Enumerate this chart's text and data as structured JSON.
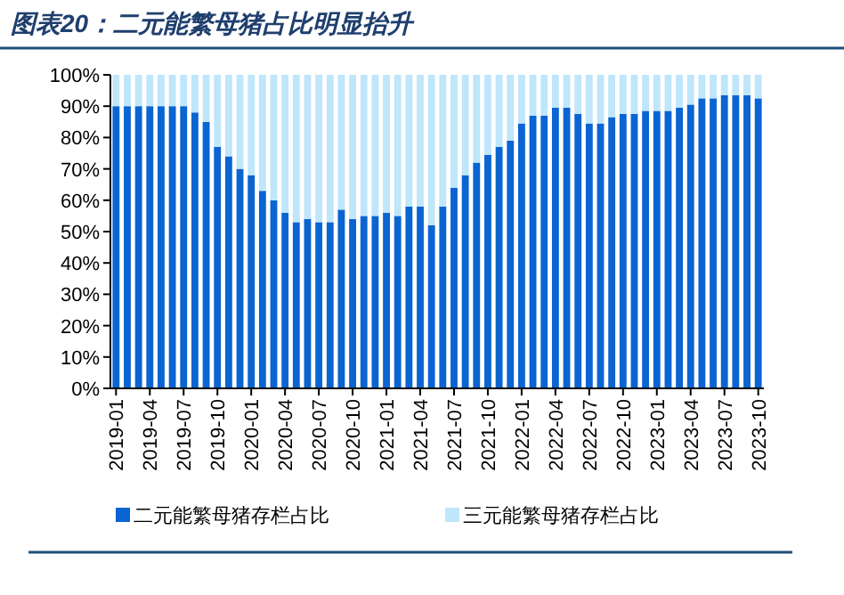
{
  "chart_data": {
    "type": "bar",
    "stacked": true,
    "title": "图表20：二元能繁母猪占比明显抬升",
    "categories": [
      "2019-01",
      null,
      null,
      "2019-04",
      null,
      null,
      "2019-07",
      null,
      null,
      "2019-10",
      null,
      null,
      "2020-01",
      null,
      null,
      "2020-04",
      null,
      null,
      "2020-07",
      null,
      null,
      "2020-10",
      null,
      null,
      "2021-01",
      null,
      null,
      "2021-04",
      null,
      null,
      "2021-07",
      null,
      null,
      "2021-10",
      null,
      null,
      "2022-01",
      null,
      null,
      "2022-04",
      null,
      null,
      "2022-07",
      null,
      null,
      "2022-10",
      null,
      null,
      "2023-01",
      null,
      null,
      "2023-04",
      null,
      null,
      "2023-07",
      null,
      null,
      "2023-10"
    ],
    "series": [
      {
        "name": "二元能繁母猪存栏占比",
        "color": "#0a64d2",
        "values": [
          90,
          90,
          90,
          90,
          90,
          90,
          90,
          88,
          85,
          77,
          74,
          70,
          68,
          63,
          60,
          56,
          53,
          54,
          53,
          53,
          57,
          54,
          55,
          55,
          56,
          55,
          58,
          58,
          52,
          58,
          64,
          68,
          72,
          74.5,
          77,
          79,
          84.5,
          87,
          87,
          89.5,
          89.5,
          87.5,
          84.5,
          84.5,
          86.5,
          87.5,
          87.5,
          88.5,
          88.5,
          88.5,
          89.5,
          90.5,
          92.5,
          92.5,
          93.5,
          93.5,
          93.5,
          92.5
        ]
      },
      {
        "name": "三元能繁母猪存栏占比",
        "color": "#bfe6fa",
        "values": [
          10,
          10,
          10,
          10,
          10,
          10,
          10,
          12,
          15,
          23,
          26,
          30,
          32,
          37,
          40,
          44,
          47,
          46,
          47,
          47,
          43,
          46,
          45,
          45,
          44,
          45,
          42,
          42,
          48,
          42,
          36,
          32,
          28,
          25.5,
          23,
          21,
          15.5,
          13,
          13,
          10.5,
          10.5,
          12.5,
          15.5,
          15.5,
          13.5,
          12.5,
          12.5,
          11.5,
          11.5,
          11.5,
          10.5,
          9.5,
          7.5,
          7.5,
          6.5,
          6.5,
          6.5,
          7.5
        ]
      }
    ],
    "ylim": [
      0,
      100
    ],
    "yticks": [
      {
        "value": 0,
        "label": "0%"
      },
      {
        "value": 10,
        "label": "10%"
      },
      {
        "value": 20,
        "label": "20%"
      },
      {
        "value": 30,
        "label": "30%"
      },
      {
        "value": 40,
        "label": "40%"
      },
      {
        "value": 50,
        "label": "50%"
      },
      {
        "value": 60,
        "label": "60%"
      },
      {
        "value": 70,
        "label": "70%"
      },
      {
        "value": 80,
        "label": "80%"
      },
      {
        "value": 90,
        "label": "90%"
      },
      {
        "value": 100,
        "label": "100%"
      }
    ],
    "legend": "bottom"
  }
}
